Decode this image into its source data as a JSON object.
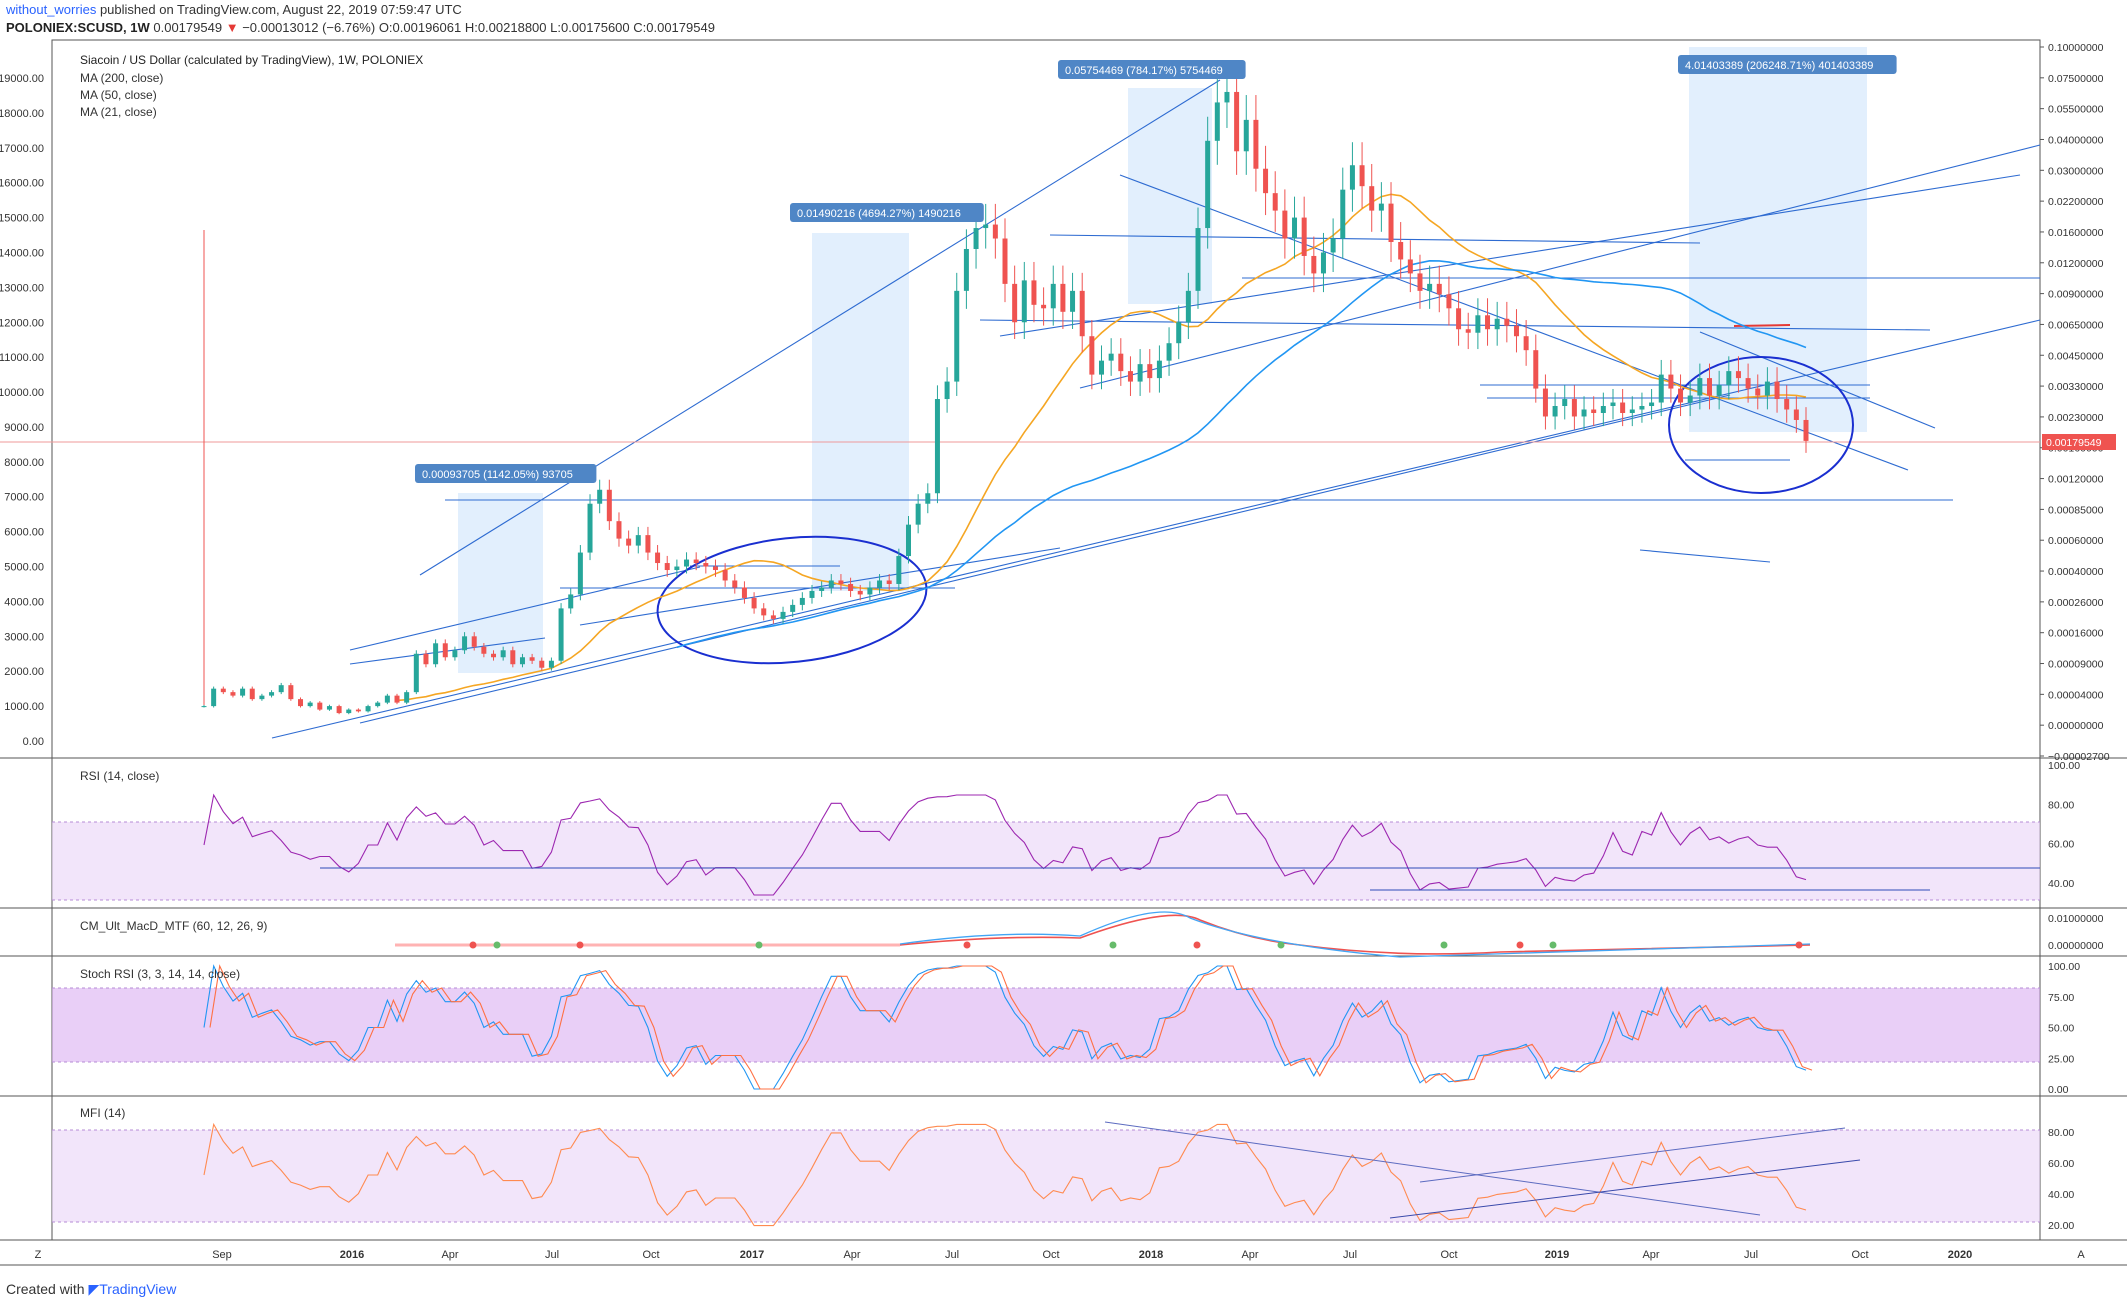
{
  "header": {
    "user": "without_worries",
    "published": "published on TradingView.com, August 22, 2019 07:59:47 UTC",
    "symbol": "POLONIEX:SCUSD, 1W",
    "last": "0.00179549",
    "change": "−0.00013012 (−6.76%)",
    "ohlc": "O:0.00196061 H:0.00218800 L:0.00175600 C:0.00179549"
  },
  "footer": {
    "created_with": "Created with",
    "brand": "TradingView"
  },
  "chart_data": {
    "type": "candlestick",
    "title": "Siacoin / US Dollar (calculated by TradingView), 1W, POLONIEX",
    "legend": [
      "MA (200, close)",
      "MA (50, close)",
      "MA (21, close)"
    ],
    "ma_colors": {
      "ma50": "#2196f3",
      "ma21": "#f5a623"
    },
    "left_axis_ticks": [
      "19000.00",
      "18000.00",
      "17000.00",
      "16000.00",
      "15000.00",
      "14000.00",
      "13000.00",
      "12000.00",
      "11000.00",
      "10000.00",
      "9000.00",
      "8000.00",
      "7000.00",
      "6000.00",
      "5000.00",
      "4000.00",
      "3000.00",
      "2000.00",
      "1000.00",
      "0.00"
    ],
    "right_axis_ticks": [
      "0.10000000",
      "0.07500000",
      "0.05500000",
      "0.04000000",
      "0.03000000",
      "0.02200000",
      "0.01600000",
      "0.01200000",
      "0.00900000",
      "0.00650000",
      "0.00450000",
      "0.00330000",
      "0.00230000",
      "0.00160000",
      "0.00120000",
      "0.00085000",
      "0.00060000",
      "0.00040000",
      "0.00026000",
      "0.00016000",
      "0.00009000",
      "0.00004000",
      "0.00000000",
      "−0.00002700"
    ],
    "last_price_label": "0.00179549",
    "x_ticks": [
      "Sep",
      "2016",
      "Apr",
      "Jul",
      "Oct",
      "2017",
      "Apr",
      "Jul",
      "Oct",
      "2018",
      "Apr",
      "Jul",
      "Oct",
      "2019",
      "Apr",
      "Jul",
      "Oct",
      "2020"
    ],
    "measure_labels": [
      "0.00093705 (1142.05%) 93705",
      "0.01490216 (4694.27%) 1490216",
      "0.05754469 (784.17%) 5754469",
      "4.01403389 (206248.71%) 401403389"
    ],
    "candles": [
      [
        1,
        1
      ],
      [
        1,
        1.5
      ],
      [
        1.5,
        1.4
      ],
      [
        1.4,
        1.3
      ],
      [
        1.3,
        1.5
      ],
      [
        1.5,
        1.2
      ],
      [
        1.2,
        1.3
      ],
      [
        1.3,
        1.4
      ],
      [
        1.4,
        1.6
      ],
      [
        1.6,
        1.2
      ],
      [
        1.2,
        1
      ],
      [
        1,
        1.1
      ],
      [
        1.1,
        0.9
      ],
      [
        0.9,
        1
      ],
      [
        1,
        0.8
      ],
      [
        0.8,
        0.9
      ],
      [
        0.9,
        0.85
      ],
      [
        0.85,
        1
      ],
      [
        1,
        1.1
      ],
      [
        1.1,
        1.3
      ],
      [
        1.3,
        1.1
      ],
      [
        1.1,
        1.4
      ],
      [
        1.4,
        2.5
      ],
      [
        2.5,
        2.2
      ],
      [
        2.2,
        2.8
      ],
      [
        2.8,
        2.4
      ],
      [
        2.4,
        2.6
      ],
      [
        2.6,
        3
      ],
      [
        3,
        2.7
      ],
      [
        2.7,
        2.5
      ],
      [
        2.5,
        2.4
      ],
      [
        2.4,
        2.6
      ],
      [
        2.6,
        2.2
      ],
      [
        2.2,
        2.4
      ],
      [
        2.4,
        2.3
      ],
      [
        2.3,
        2.1
      ],
      [
        2.1,
        2.3
      ],
      [
        2.3,
        3.8
      ],
      [
        3.8,
        4.2
      ],
      [
        4.2,
        5.4
      ],
      [
        5.4,
        6.8
      ],
      [
        6.8,
        7.2
      ],
      [
        7.2,
        6.3
      ],
      [
        6.3,
        5.8
      ],
      [
        5.8,
        5.6
      ],
      [
        5.6,
        5.9
      ],
      [
        5.9,
        5.4
      ],
      [
        5.4,
        5.1
      ],
      [
        5.1,
        4.9
      ],
      [
        4.9,
        5
      ],
      [
        5,
        5.2
      ],
      [
        5.2,
        5.1
      ],
      [
        5.1,
        5
      ],
      [
        5,
        4.9
      ],
      [
        4.9,
        4.6
      ],
      [
        4.6,
        4.4
      ],
      [
        4.4,
        4.1
      ],
      [
        4.1,
        3.8
      ],
      [
        3.8,
        3.6
      ],
      [
        3.6,
        3.5
      ],
      [
        3.5,
        3.7
      ],
      [
        3.7,
        3.9
      ],
      [
        3.9,
        4.1
      ],
      [
        4.1,
        4.3
      ],
      [
        4.3,
        4.4
      ],
      [
        4.4,
        4.6
      ],
      [
        4.6,
        4.5
      ],
      [
        4.5,
        4.3
      ],
      [
        4.3,
        4.2
      ],
      [
        4.2,
        4.4
      ],
      [
        4.4,
        4.6
      ],
      [
        4.6,
        4.5
      ],
      [
        4.5,
        5.3
      ],
      [
        5.3,
        6.2
      ],
      [
        6.2,
        6.8
      ],
      [
        6.8,
        7.1
      ],
      [
        7.1,
        9.8
      ],
      [
        9.8,
        10.3
      ],
      [
        10.3,
        12.9
      ],
      [
        12.9,
        14.1
      ],
      [
        14.1,
        14.7
      ],
      [
        14.7,
        14.8
      ],
      [
        14.8,
        14.4
      ],
      [
        14.4,
        13.1
      ],
      [
        13.1,
        12
      ],
      [
        12,
        13.2
      ],
      [
        13.2,
        12.5
      ],
      [
        12.5,
        12.4
      ],
      [
        12.4,
        13.1
      ],
      [
        13.1,
        12.3
      ],
      [
        12.3,
        12.9
      ],
      [
        12.9,
        11.6
      ],
      [
        11.6,
        10.5
      ],
      [
        10.5,
        10.9
      ],
      [
        10.9,
        11.1
      ],
      [
        11.1,
        10.6
      ],
      [
        10.6,
        10.3
      ],
      [
        10.3,
        10.8
      ],
      [
        10.8,
        10.4
      ],
      [
        10.4,
        10.9
      ],
      [
        10.9,
        11.4
      ],
      [
        11.4,
        12
      ],
      [
        12,
        12.9
      ],
      [
        12.9,
        14.7
      ],
      [
        14.7,
        17.2
      ],
      [
        17.2,
        18.3
      ],
      [
        18.3,
        18.6
      ],
      [
        18.6,
        16.9
      ],
      [
        16.9,
        17.8
      ],
      [
        17.8,
        16.4
      ],
      [
        16.4,
        15.7
      ],
      [
        15.7,
        15.2
      ],
      [
        15.2,
        14.4
      ],
      [
        14.4,
        15
      ],
      [
        15,
        13.9
      ],
      [
        13.9,
        13.4
      ],
      [
        13.4,
        14
      ],
      [
        14,
        14.4
      ],
      [
        14.4,
        15.8
      ],
      [
        15.8,
        16.5
      ],
      [
        16.5,
        15.9
      ],
      [
        15.9,
        15.2
      ],
      [
        15.2,
        15.4
      ],
      [
        15.4,
        14.3
      ],
      [
        14.3,
        13.8
      ],
      [
        13.8,
        13.4
      ],
      [
        13.4,
        12.9
      ],
      [
        12.9,
        13.1
      ],
      [
        13.1,
        12.8
      ],
      [
        12.8,
        12.4
      ],
      [
        12.4,
        11.8
      ],
      [
        11.8,
        11.7
      ],
      [
        11.7,
        12.2
      ],
      [
        12.2,
        11.8
      ],
      [
        11.8,
        12.1
      ],
      [
        12.1,
        11.9
      ],
      [
        11.9,
        11.6
      ],
      [
        11.6,
        11.2
      ],
      [
        11.2,
        10.1
      ],
      [
        10.1,
        9.3
      ],
      [
        9.3,
        9.6
      ],
      [
        9.6,
        9.8
      ],
      [
        9.8,
        9.3
      ],
      [
        9.3,
        9.5
      ],
      [
        9.5,
        9.4
      ],
      [
        9.4,
        9.6
      ],
      [
        9.6,
        9.7
      ],
      [
        9.7,
        9.4
      ],
      [
        9.4,
        9.5
      ],
      [
        9.5,
        9.6
      ],
      [
        9.6,
        9.7
      ],
      [
        9.7,
        10.5
      ],
      [
        10.5,
        10.1
      ],
      [
        10.1,
        9.7
      ],
      [
        9.7,
        9.9
      ],
      [
        9.9,
        10.4
      ],
      [
        10.4,
        9.9
      ],
      [
        9.9,
        10.2
      ],
      [
        10.2,
        10.6
      ],
      [
        10.6,
        10.4
      ],
      [
        10.4,
        10.1
      ],
      [
        10.1,
        9.9
      ],
      [
        9.9,
        10.3
      ],
      [
        10.3,
        9.8
      ],
      [
        9.8,
        9.5
      ],
      [
        9.5,
        9.2
      ],
      [
        9.2,
        8.6
      ]
    ],
    "indicators": {
      "rsi": {
        "label": "RSI (14, close)",
        "ticks": [
          "100.00",
          "80.00",
          "60.00",
          "40.00"
        ]
      },
      "macd": {
        "label": "CM_Ult_MacD_MTF (60, 12, 26, 9)",
        "ticks": [
          "0.01000000",
          "0.00000000"
        ]
      },
      "stoch": {
        "label": "Stoch RSI (3, 3, 14, 14, close)",
        "ticks": [
          "100.00",
          "75.00",
          "50.00",
          "25.00",
          "0.00"
        ]
      },
      "mfi": {
        "label": "MFI (14)",
        "ticks": [
          "80.00",
          "60.00",
          "40.00",
          "20.00"
        ]
      }
    },
    "axis_buttons": {
      "left": "Z",
      "right": "A"
    }
  }
}
